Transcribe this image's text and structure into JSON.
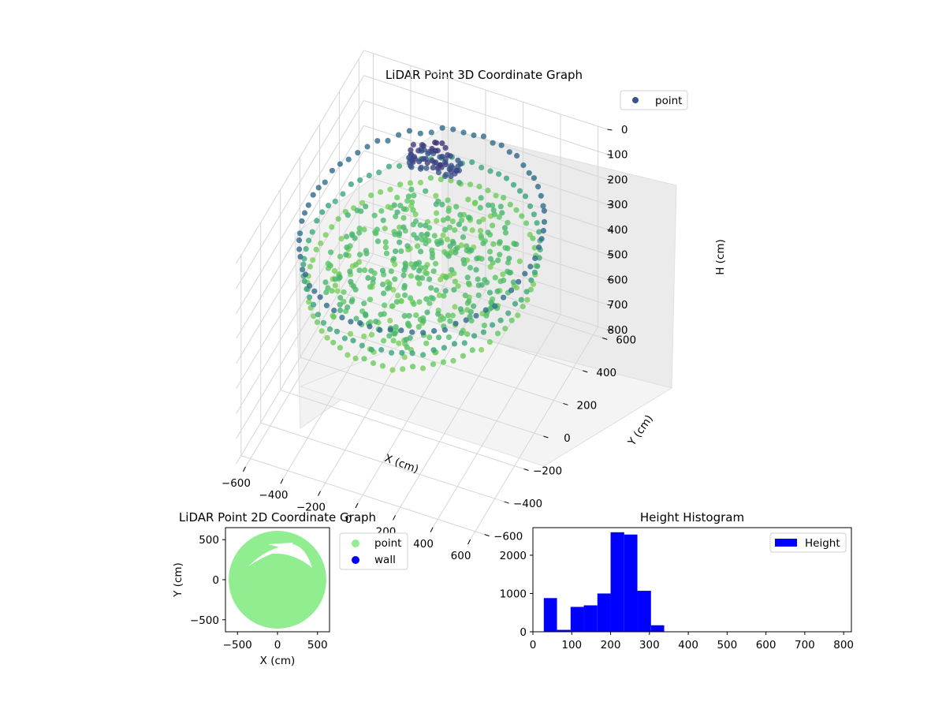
{
  "figure": {
    "colors": {
      "viridis_dark": "#440154",
      "viridis_blue": "#3b528b",
      "viridis_teal": "#21918c",
      "viridis_green": "#5ec962",
      "viridis_yellow": "#fde725",
      "point_2d": "#90ee90",
      "wall_2d": "#0000ff",
      "hist_bar": "#0000ff"
    }
  },
  "chart_data": [
    {
      "type": "scatter",
      "projection": "3d",
      "title": "LiDAR Point 3D Coordinate Graph",
      "xlabel": "X (cm)",
      "ylabel": "Y (cm)",
      "zlabel": "H (cm)",
      "xlim": [
        -650,
        650
      ],
      "ylim": [
        -650,
        650
      ],
      "zlim": [
        800,
        0
      ],
      "xticks": [
        "−600",
        "−400",
        "−200",
        "0",
        "200",
        "400",
        "600"
      ],
      "yticks": [
        "−600",
        "−400",
        "−200",
        "0",
        "200",
        "400",
        "600"
      ],
      "zticks": [
        "0",
        "100",
        "200",
        "300",
        "400",
        "500",
        "600",
        "700",
        "800"
      ],
      "legend": {
        "placement": "upper-right",
        "entries": [
          "point"
        ]
      },
      "grid": true,
      "colormap": "viridis",
      "series": [
        {
          "name": "point",
          "structures": [
            {
              "shape": "ring",
              "radius": 580,
              "height": 130,
              "note": "upper wall ring"
            },
            {
              "shape": "ring",
              "radius": 560,
              "height": 230
            },
            {
              "shape": "ring",
              "radius": 540,
              "height": 300
            },
            {
              "shape": "disc",
              "radius": 470,
              "height": 255,
              "note": "dense floor-level cluster"
            },
            {
              "shape": "blob",
              "x": -100,
              "y": 330,
              "height": 60,
              "note": "dark dense cluster"
            }
          ]
        }
      ]
    },
    {
      "type": "scatter",
      "title": "LiDAR Point 2D Coordinate Graph",
      "xlabel": "X (cm)",
      "ylabel": "Y (cm)",
      "xlim": [
        -650,
        650
      ],
      "ylim": [
        -650,
        650
      ],
      "xticks": [
        "−500",
        "0",
        "500"
      ],
      "yticks": [
        "−500",
        "0",
        "500"
      ],
      "legend": {
        "placement": "outside-right",
        "entries": [
          "point",
          "wall"
        ]
      },
      "grid": false,
      "series": [
        {
          "name": "point",
          "shape": "disc",
          "center": [
            0,
            0
          ],
          "radius": 610
        },
        {
          "name": "wall",
          "count": 0
        }
      ]
    },
    {
      "type": "bar",
      "title": "Height Histogram",
      "xlabel": "",
      "ylabel": "",
      "xlim": [
        0,
        820
      ],
      "ylim": [
        0,
        2720
      ],
      "xticks": [
        "0",
        "100",
        "200",
        "300",
        "400",
        "500",
        "600",
        "700",
        "800"
      ],
      "yticks": [
        "0",
        "1000",
        "2000"
      ],
      "legend": {
        "placement": "upper-right",
        "entries": [
          "Height"
        ]
      },
      "grid": false,
      "series": [
        {
          "name": "Height",
          "bins": [
            {
              "x0": 28,
              "x1": 62,
              "value": 880
            },
            {
              "x0": 62,
              "x1": 97,
              "value": 50
            },
            {
              "x0": 97,
              "x1": 131,
              "value": 650
            },
            {
              "x0": 131,
              "x1": 166,
              "value": 690
            },
            {
              "x0": 166,
              "x1": 200,
              "value": 1000
            },
            {
              "x0": 200,
              "x1": 235,
              "value": 2600
            },
            {
              "x0": 235,
              "x1": 269,
              "value": 2540
            },
            {
              "x0": 269,
              "x1": 304,
              "value": 1070
            },
            {
              "x0": 304,
              "x1": 338,
              "value": 170
            }
          ]
        }
      ]
    }
  ]
}
